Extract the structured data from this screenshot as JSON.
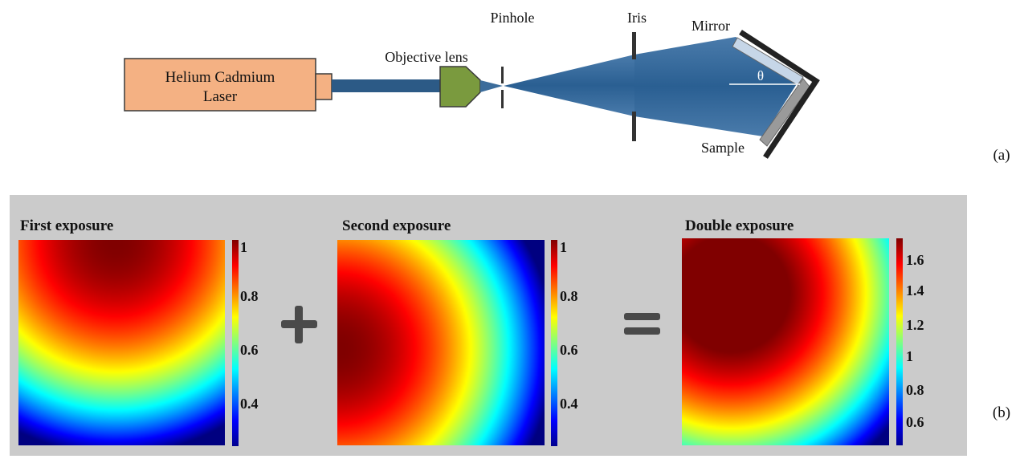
{
  "part_a": {
    "laser_line1": "Helium Cadmium",
    "laser_line2": "Laser",
    "objective_lens": "Objective lens",
    "pinhole": "Pinhole",
    "iris": "Iris",
    "mirror": "Mirror",
    "sample": "Sample",
    "angle": "θ",
    "panel_label": "(a)"
  },
  "part_b": {
    "panel_label": "(b)",
    "plus": "+",
    "equals": "=",
    "colormap": "jet",
    "panels": [
      {
        "title": "First exposure",
        "colorbar_ticks": [
          "1",
          "0.8",
          "0.6",
          "0.4"
        ],
        "range": [
          0.25,
          1.0
        ]
      },
      {
        "title": "Second exposure",
        "colorbar_ticks": [
          "1",
          "0.8",
          "0.6",
          "0.4"
        ],
        "range": [
          0.25,
          1.0
        ]
      },
      {
        "title": "Double exposure",
        "colorbar_ticks": [
          "1.6",
          "1.4",
          "1.2",
          "1",
          "0.8",
          "0.6"
        ],
        "range": [
          0.45,
          1.72
        ]
      }
    ]
  }
}
